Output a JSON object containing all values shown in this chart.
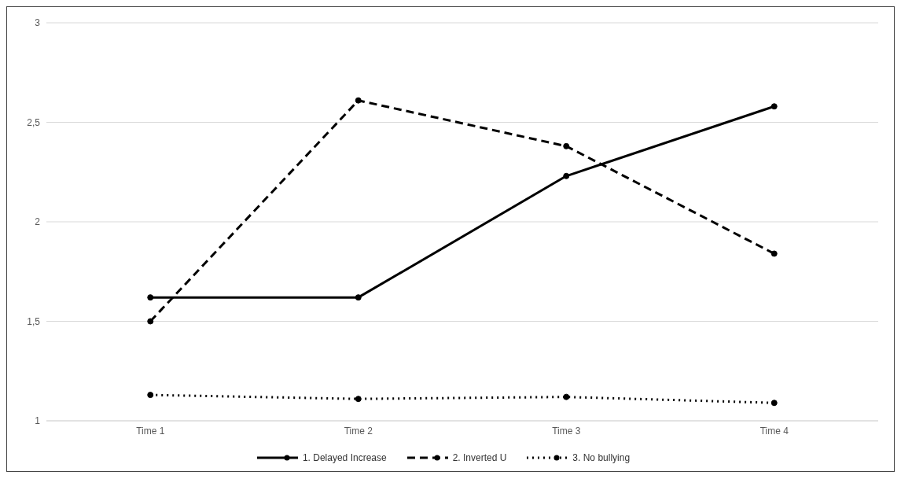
{
  "chart_data": {
    "type": "line",
    "categories": [
      "Time 1",
      "Time 2",
      "Time 3",
      "Time 4"
    ],
    "series": [
      {
        "name": "1. Delayed Increase",
        "color": "#000000",
        "line_style": "solid",
        "values": [
          1.62,
          1.62,
          2.23,
          2.58
        ]
      },
      {
        "name": "2. Inverted U",
        "color": "#000000",
        "line_style": "dashed",
        "values": [
          1.5,
          2.61,
          2.38,
          1.84
        ]
      },
      {
        "name": "3. No bullying",
        "color": "#000000",
        "line_style": "dotted",
        "values": [
          1.13,
          1.11,
          1.12,
          1.09
        ]
      }
    ],
    "ylim": [
      1,
      3
    ],
    "yticks": [
      1,
      {
        "value": 1.5,
        "label": "1,5"
      },
      2,
      {
        "value": 2.5,
        "label": "2,5"
      },
      3
    ],
    "grid": "y",
    "legend": "bottom",
    "marker": "circle"
  }
}
